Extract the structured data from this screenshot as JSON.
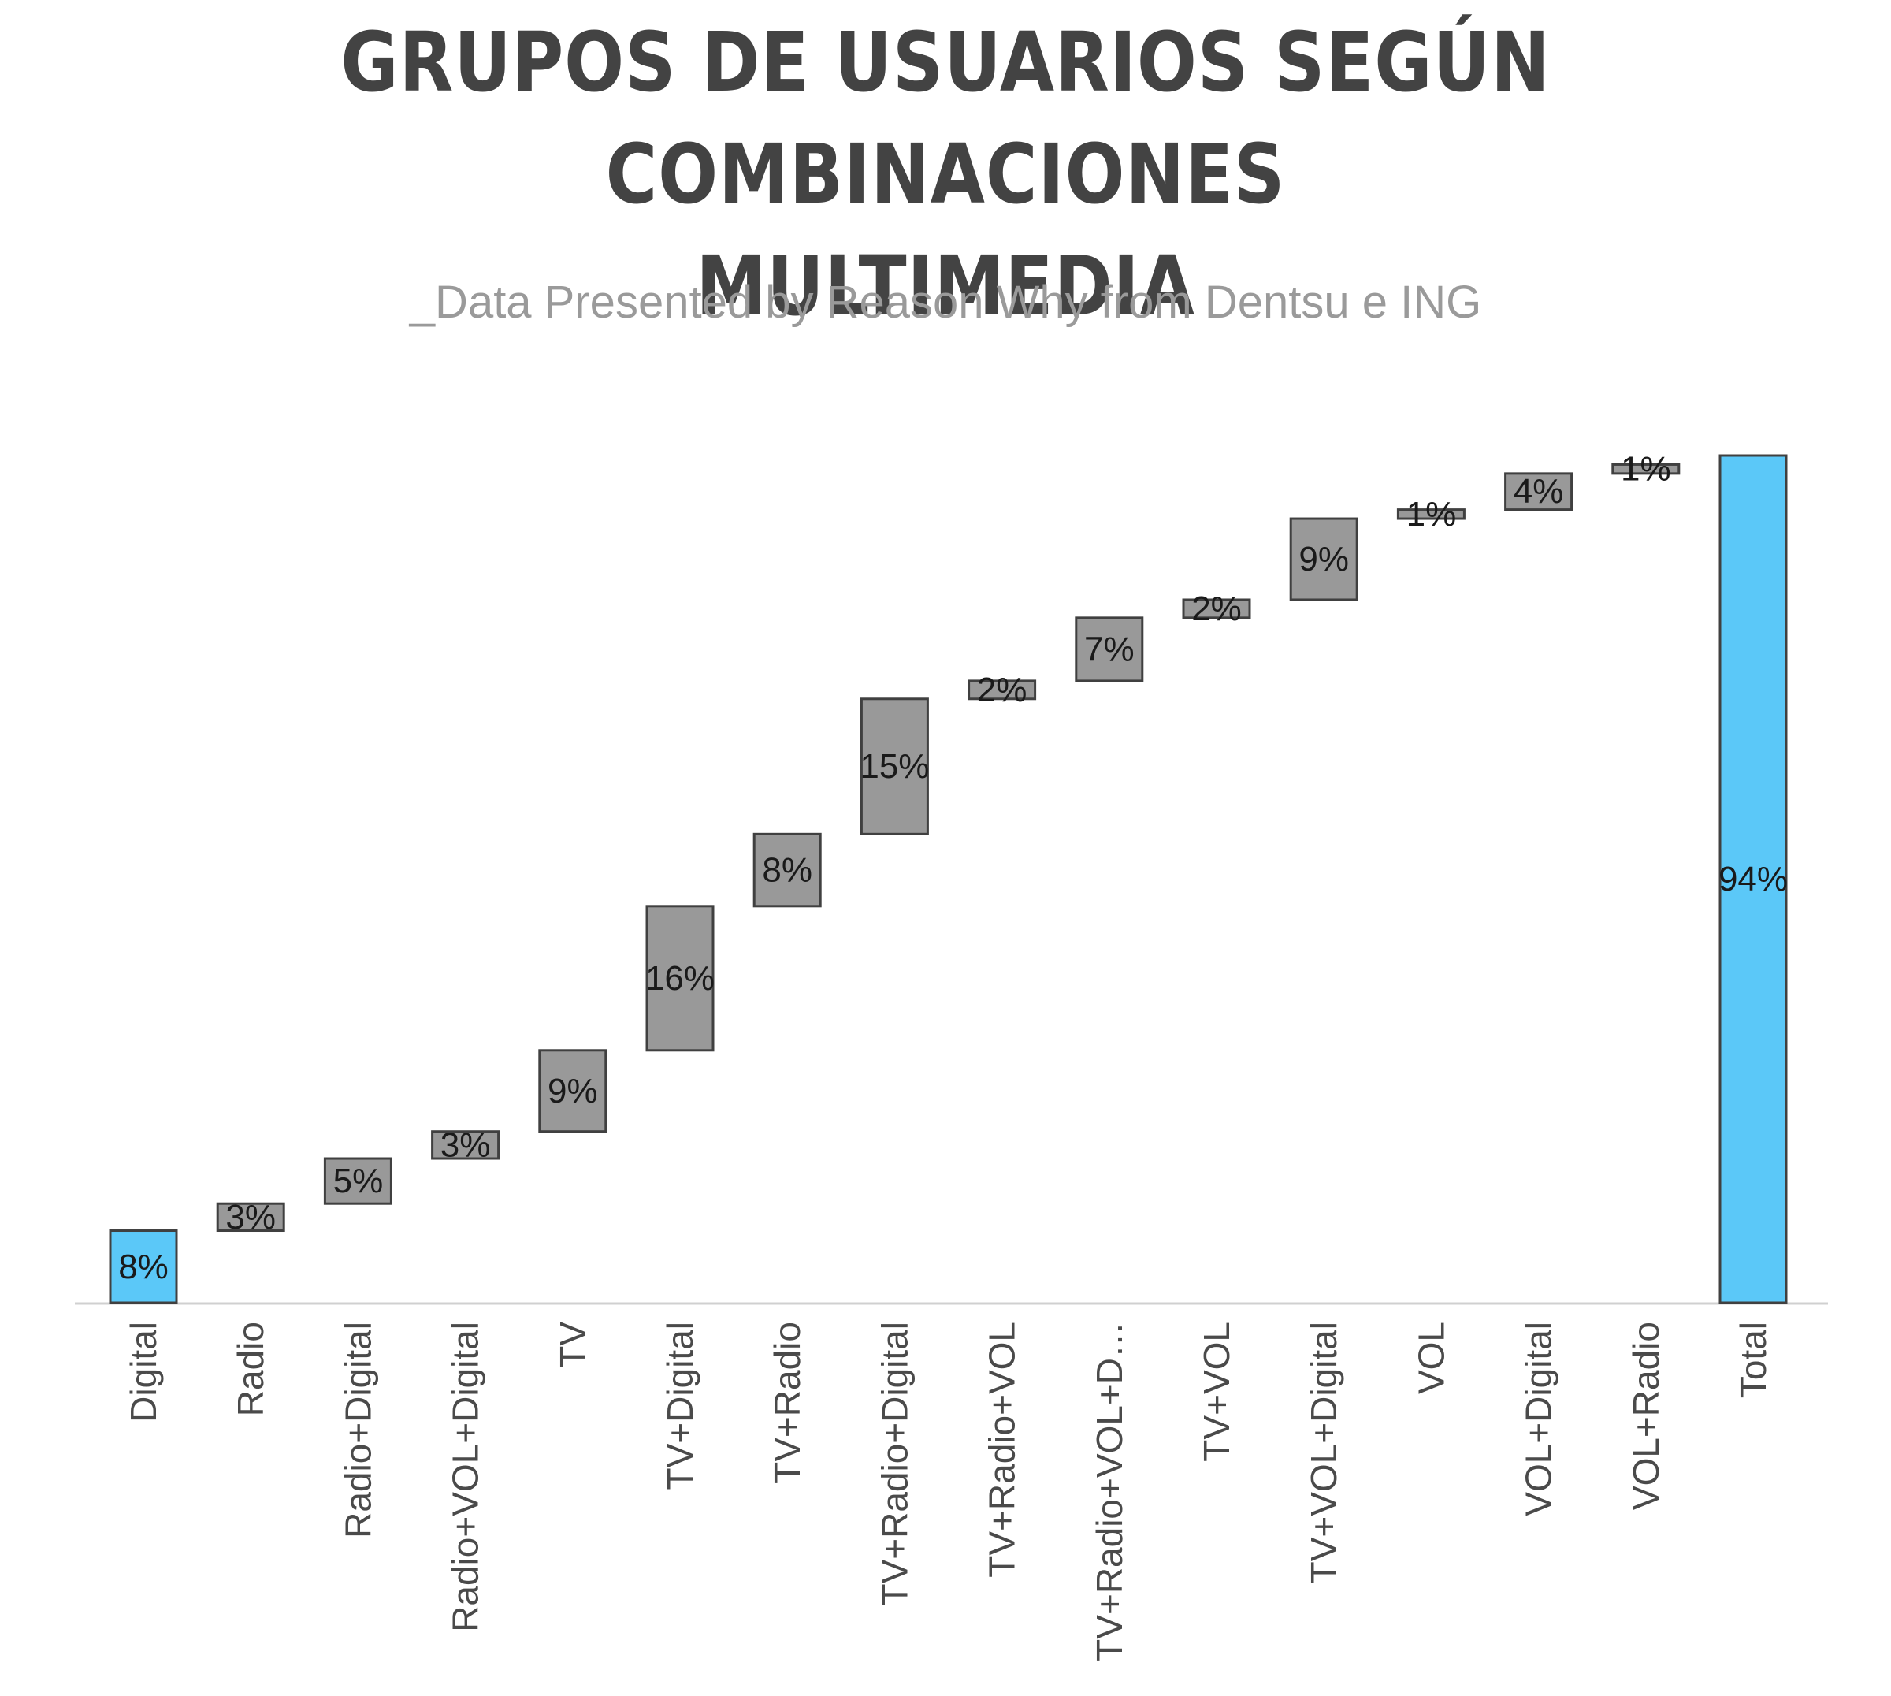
{
  "title": "GRUPOS DE USUARIOS SEGÚN COMBINACIONES MULTIMEDIA",
  "subtitle": "_Data Presented by Reason Why from Dentsu e ING",
  "colors": {
    "total_bar": "#5bc8f8",
    "step_bar": "#999999",
    "bar_stroke": "#404040",
    "baseline": "#d0d0d0",
    "label_text": "#4a4a4a",
    "value_text": "#1a1a1a"
  },
  "chart_data": {
    "type": "waterfall",
    "title": "GRUPOS DE USUARIOS SEGÚN COMBINACIONES MULTIMEDIA",
    "subtitle": "_Data Presented by Reason Why from Dentsu e ING",
    "categories": [
      "Digital",
      "Radio",
      "Radio+Digital",
      "Radio+VOL+Digital",
      "TV",
      "TV+Digital",
      "TV+Radio",
      "TV+Radio+Digital",
      "TV+Radio+VOL",
      "TV+Radio+VOL+D…",
      "TV+VOL",
      "TV+VOL+Digital",
      "VOL",
      "VOL+Digital",
      "VOL+Radio",
      "Total"
    ],
    "values": [
      8,
      3,
      5,
      3,
      9,
      16,
      8,
      15,
      2,
      7,
      2,
      9,
      1,
      4,
      1,
      94
    ],
    "data_labels": [
      "8%",
      "3%",
      "5%",
      "3%",
      "9%",
      "16%",
      "8%",
      "15%",
      "2%",
      "7%",
      "2%",
      "9%",
      "1%",
      "4%",
      "1%",
      "94%"
    ],
    "highlighted": [
      "Digital",
      "Total"
    ],
    "ylim": [
      0,
      94
    ],
    "unit": "%",
    "xlabel": "",
    "ylabel": "",
    "grid": false,
    "legend": "none"
  }
}
